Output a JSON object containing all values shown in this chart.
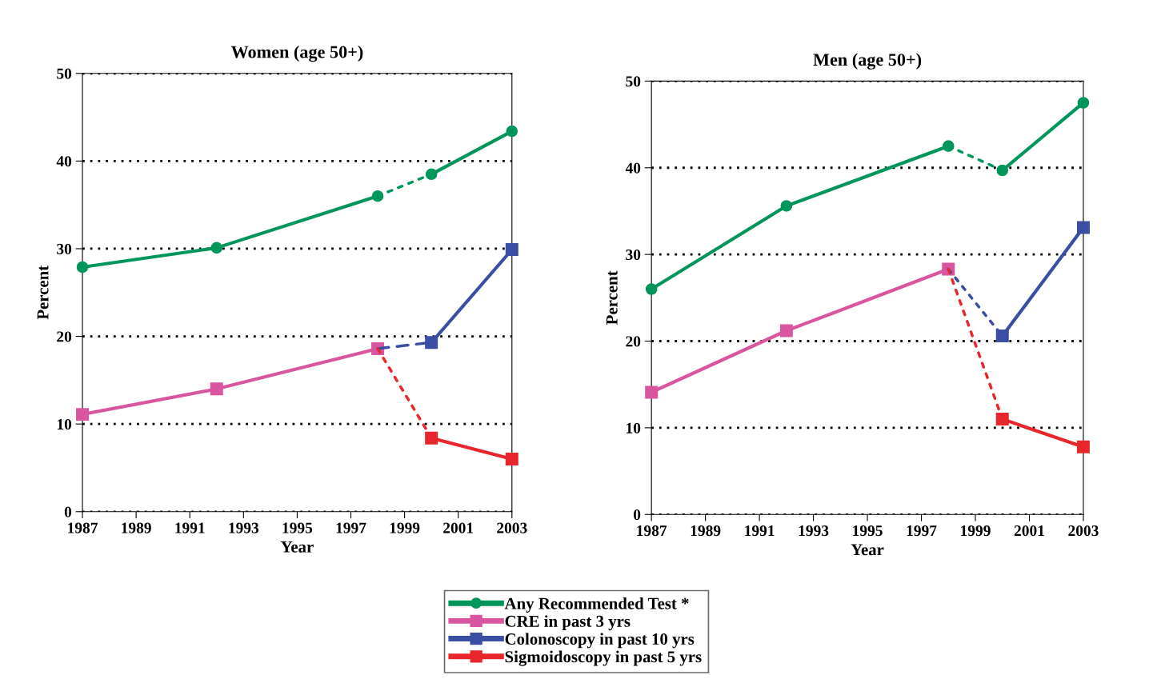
{
  "chart_data": [
    {
      "type": "line",
      "title": "Women (age 50+)",
      "xlabel": "Year",
      "ylabel": "Percent",
      "xlim": [
        1987,
        2003
      ],
      "xticks": [
        1987,
        1989,
        1991,
        1993,
        1995,
        1997,
        1999,
        2001,
        2003
      ],
      "ylim": [
        0,
        50
      ],
      "yticks": [
        0,
        10,
        20,
        30,
        40,
        50
      ],
      "grid": "y",
      "legend": "bottom",
      "line_style": "solid",
      "series": [
        {
          "name": "Any Recommended Test *",
          "color": "#00965a",
          "marker": "circle",
          "x": [
            1987,
            1992,
            1998
          ],
          "values": [
            27.9,
            30.1,
            36.0
          ]
        },
        {
          "color": "#00965a",
          "marker": "circle",
          "x": [
            2000,
            2003
          ],
          "values": [
            38.5,
            43.4
          ]
        },
        {
          "color": "#00965a",
          "marker": "none",
          "line_style": "dotted",
          "x": [
            1998,
            2000
          ],
          "values": [
            36.0,
            38.5
          ]
        },
        {
          "name": "CRE in past 3 yrs",
          "color": "#d9559f",
          "marker": "square",
          "x": [
            1987,
            1992,
            1998
          ],
          "values": [
            11.1,
            14.0,
            18.6
          ]
        },
        {
          "name": "Colonoscopy in past 10 yrs",
          "color": "#3a4ea3",
          "marker": "square",
          "x": [
            2000,
            2003
          ],
          "values": [
            19.3,
            29.9
          ]
        },
        {
          "color": "#3a4ea3",
          "marker": "none",
          "line_style": "dashed",
          "x": [
            1998,
            2000
          ],
          "values": [
            18.6,
            19.3
          ]
        },
        {
          "name": "Sigmoidoscopy in past 5 yrs",
          "color": "#e8262c",
          "marker": "square",
          "x": [
            2000,
            2003
          ],
          "values": [
            8.4,
            6.0
          ]
        },
        {
          "color": "#e8262c",
          "marker": "none",
          "line_style": "dotted",
          "x": [
            1998,
            2000
          ],
          "values": [
            18.6,
            8.4
          ]
        }
      ]
    },
    {
      "type": "line",
      "title": "Men (age 50+)",
      "xlabel": "Year",
      "ylabel": "Percent",
      "xlim": [
        1987,
        2003
      ],
      "xticks": [
        1987,
        1989,
        1991,
        1993,
        1995,
        1997,
        1999,
        2001,
        2003
      ],
      "ylim": [
        0,
        50
      ],
      "yticks": [
        0,
        10,
        20,
        30,
        40,
        50
      ],
      "grid": "y",
      "line_style": "solid",
      "series": [
        {
          "color": "#00965a",
          "marker": "circle",
          "x": [
            1987,
            1992,
            1998
          ],
          "values": [
            26.0,
            35.6,
            42.5
          ]
        },
        {
          "color": "#00965a",
          "marker": "circle",
          "x": [
            2000,
            2003
          ],
          "values": [
            39.7,
            47.5
          ]
        },
        {
          "color": "#00965a",
          "marker": "none",
          "line_style": "dotted",
          "x": [
            1998,
            2000
          ],
          "values": [
            42.5,
            39.7
          ]
        },
        {
          "color": "#d9559f",
          "marker": "square",
          "x": [
            1987,
            1992,
            1998
          ],
          "values": [
            14.1,
            21.2,
            28.3
          ]
        },
        {
          "color": "#3a4ea3",
          "marker": "square",
          "x": [
            2000,
            2003
          ],
          "values": [
            20.6,
            33.1
          ]
        },
        {
          "color": "#3a4ea3",
          "marker": "none",
          "line_style": "dotted",
          "x": [
            1998,
            2000
          ],
          "values": [
            28.3,
            20.6
          ]
        },
        {
          "color": "#e8262c",
          "marker": "square",
          "x": [
            2000,
            2003
          ],
          "values": [
            11.0,
            7.8
          ]
        },
        {
          "color": "#e8262c",
          "marker": "none",
          "line_style": "dotted",
          "x": [
            1998,
            2000
          ],
          "values": [
            28.3,
            11.0
          ]
        }
      ]
    }
  ]
}
